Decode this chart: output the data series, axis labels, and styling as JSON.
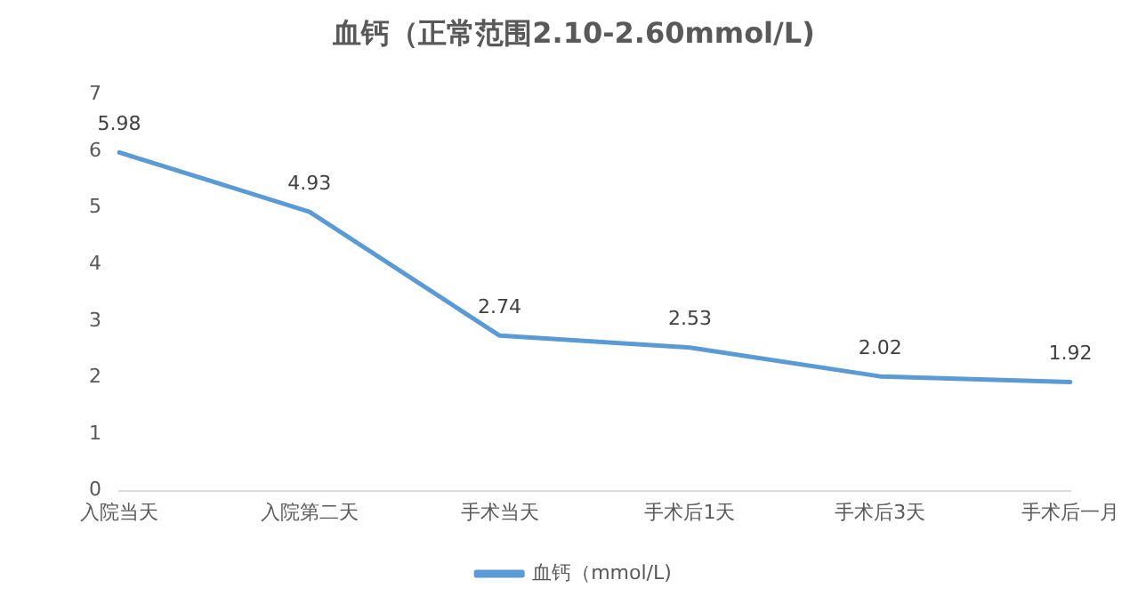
{
  "chart_data": {
    "type": "line",
    "title": "血钙（正常范围2.10-2.60mmol/L)",
    "categories": [
      "入院当天",
      "入院第二天",
      "手术当天",
      "手术后1天",
      "手术后3天",
      "手术后一月"
    ],
    "series": [
      {
        "name": "血钙（mmol/L)",
        "color": "#5b9bd5",
        "values": [
          5.98,
          4.93,
          2.74,
          2.53,
          2.02,
          1.92
        ]
      }
    ],
    "ylim": [
      0,
      7
    ],
    "yticks": [
      0,
      1,
      2,
      3,
      4,
      5,
      6,
      7
    ],
    "grid": false,
    "legend": "bottom",
    "marker": "none",
    "line_style": "solid",
    "data_labels": true
  }
}
